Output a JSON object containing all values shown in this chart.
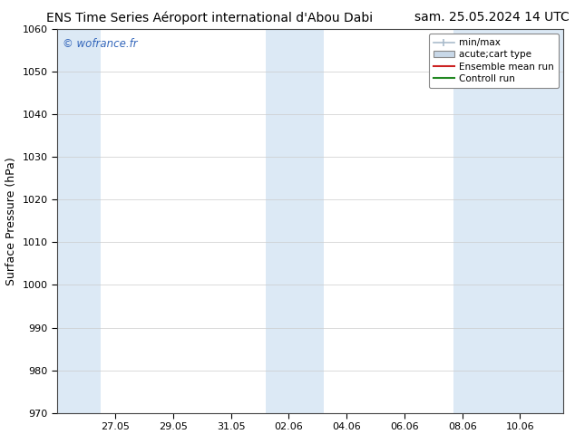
{
  "title_left": "ENS Time Series Aéroport international d'Abou Dabi",
  "title_right": "sam. 25.05.2024 14 UTC",
  "ylabel": "Surface Pressure (hPa)",
  "ylim": [
    970,
    1060
  ],
  "yticks": [
    970,
    980,
    990,
    1000,
    1010,
    1020,
    1030,
    1040,
    1050,
    1060
  ],
  "xtick_labels": [
    "27.05",
    "29.05",
    "31.05",
    "02.06",
    "04.06",
    "06.06",
    "08.06",
    "10.06"
  ],
  "xtick_positions": [
    2,
    4,
    6,
    8,
    10,
    12,
    14,
    16
  ],
  "xlim": [
    0.0,
    17.5
  ],
  "shaded_bands": [
    {
      "x_start": 0.0,
      "x_end": 1.5
    },
    {
      "x_start": 7.2,
      "x_end": 9.2
    },
    {
      "x_start": 13.7,
      "x_end": 17.5
    }
  ],
  "shade_color": "#dce9f5",
  "background_color": "#ffffff",
  "plot_bg_color": "#ffffff",
  "watermark": "© wofrance.fr",
  "watermark_color": "#3366bb",
  "legend_entries": [
    {
      "label": "min/max",
      "type": "errorbar",
      "color": "#aabccc",
      "lw": 1.2
    },
    {
      "label": "acute;cart type",
      "type": "rect",
      "color": "#c8d8e8",
      "lw": 1.0
    },
    {
      "label": "Ensemble mean run",
      "type": "line",
      "color": "#cc2222",
      "lw": 1.5
    },
    {
      "label": "Controll run",
      "type": "line",
      "color": "#228822",
      "lw": 1.5
    }
  ],
  "grid_color": "#cccccc",
  "tick_label_fontsize": 8,
  "title_fontsize": 10,
  "ylabel_fontsize": 9
}
